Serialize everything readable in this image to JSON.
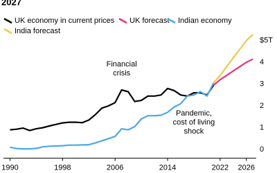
{
  "chart_data": {
    "type": "line",
    "title": "2027",
    "series": [
      {
        "name": "UK economy in current prices",
        "color": "#000000",
        "x": [
          1990,
          1991,
          1992,
          1993,
          1994,
          1995,
          1996,
          1997,
          1998,
          1999,
          2000,
          2001,
          2002,
          2003,
          2004,
          2005,
          2006,
          2007,
          2008,
          2009,
          2010,
          2011,
          2012,
          2013,
          2014,
          2015,
          2016,
          2017,
          2018,
          2019,
          2020,
          2021
        ],
        "values": [
          0.9,
          0.93,
          0.98,
          0.87,
          0.95,
          1.0,
          1.08,
          1.15,
          1.22,
          1.25,
          1.25,
          1.23,
          1.35,
          1.6,
          1.9,
          2.0,
          2.15,
          2.73,
          2.65,
          2.2,
          2.25,
          2.45,
          2.45,
          2.5,
          2.8,
          2.7,
          2.5,
          2.45,
          2.6,
          2.6,
          2.5,
          2.95
        ]
      },
      {
        "name": "UK forecast",
        "color": "#e8327a",
        "x": [
          2021,
          2022,
          2023,
          2024,
          2025,
          2026,
          2027
        ],
        "values": [
          2.95,
          3.2,
          3.4,
          3.6,
          3.8,
          4.0,
          4.15
        ]
      },
      {
        "name": "Indian economy",
        "color": "#4aa8e8",
        "x": [
          1990,
          1991,
          1992,
          1993,
          1994,
          1995,
          1996,
          1997,
          1998,
          1999,
          2000,
          2001,
          2002,
          2003,
          2004,
          2005,
          2006,
          2007,
          2008,
          2009,
          2010,
          2011,
          2012,
          2013,
          2014,
          2015,
          2016,
          2017,
          2018,
          2019,
          2020,
          2021
        ],
        "values": [
          0.1,
          0.04,
          0.03,
          0.03,
          0.05,
          0.12,
          0.15,
          0.16,
          0.17,
          0.2,
          0.2,
          0.21,
          0.22,
          0.3,
          0.4,
          0.5,
          0.6,
          0.95,
          0.9,
          1.05,
          1.4,
          1.55,
          1.55,
          1.57,
          1.7,
          1.95,
          2.1,
          2.45,
          2.5,
          2.65,
          2.45,
          3.05
        ]
      },
      {
        "name": "India forecast",
        "color": "#f0c846",
        "x": [
          2021,
          2022,
          2023,
          2024,
          2025,
          2026,
          2027
        ],
        "values": [
          3.05,
          3.4,
          3.8,
          4.2,
          4.6,
          5.0,
          5.27
        ]
      }
    ],
    "xlim": [
      1989,
      2027.5
    ],
    "xticks": [
      1990,
      1998,
      2006,
      2014,
      2022,
      2026
    ],
    "ylim": [
      -0.4,
      5.6
    ],
    "yticks": [
      0,
      1,
      2,
      3,
      4,
      {
        "value": 5,
        "label": "$5T"
      }
    ],
    "annotations": [
      {
        "lines": [
          "Financial",
          "crisis"
        ],
        "x": 2007,
        "y": 3.9
      },
      {
        "lines": [
          "Pandemic,",
          "cost of living",
          "shock"
        ],
        "x": 2018,
        "y": 1.65
      }
    ]
  }
}
